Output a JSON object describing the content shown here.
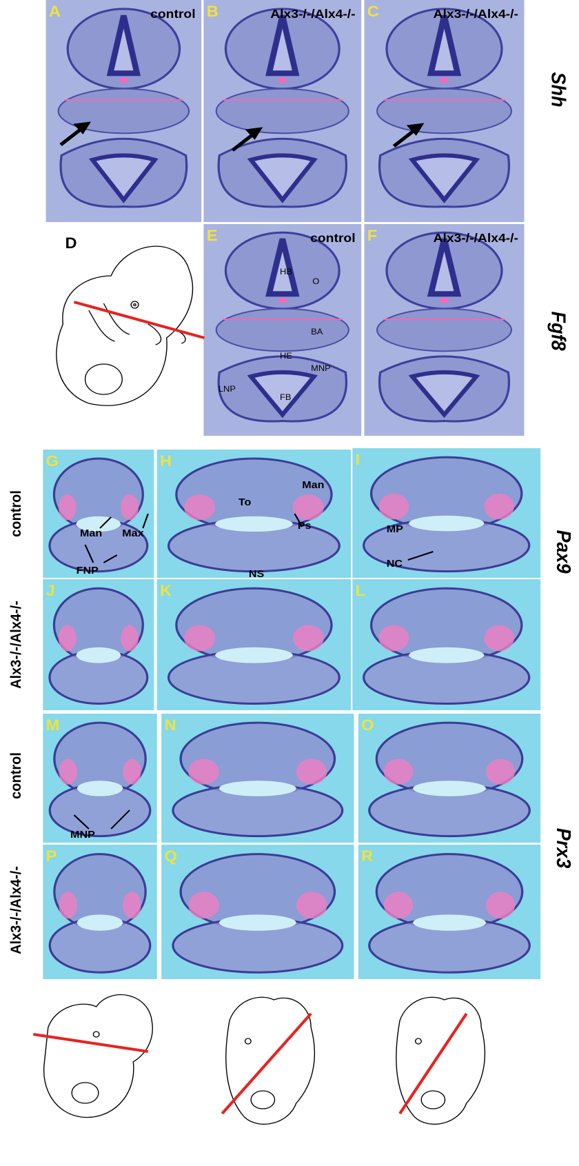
{
  "panels": [
    {
      "letter": "A",
      "caption": "control"
    },
    {
      "letter": "B",
      "caption": "Alx3-/-/Alx4-/-"
    },
    {
      "letter": "C",
      "caption": "Alx3-/-/Alx4-/-"
    },
    {
      "letter": "D"
    },
    {
      "letter": "E",
      "caption": "control"
    },
    {
      "letter": "F",
      "caption": "Alx3-/-/Alx4-/-"
    },
    {
      "letter": "G"
    },
    {
      "letter": "H"
    },
    {
      "letter": "I"
    },
    {
      "letter": "J"
    },
    {
      "letter": "K"
    },
    {
      "letter": "L"
    },
    {
      "letter": "M"
    },
    {
      "letter": "N"
    },
    {
      "letter": "O"
    },
    {
      "letter": "P"
    },
    {
      "letter": "Q"
    },
    {
      "letter": "R"
    }
  ],
  "annotations": [
    "HB",
    "O",
    "BA",
    "HE",
    "MNP",
    "LNP",
    "FB",
    "Man",
    "Max",
    "FNP",
    "To",
    "Man",
    "Ps",
    "NS",
    "MP",
    "NC",
    "MNP"
  ],
  "row_labels": [
    "control",
    "Alx3-/-/Alx4-/-",
    "control",
    "Alx3-/-/Alx4-/-"
  ],
  "gene_labels": [
    "Shh",
    "Fgf8",
    "Pax9",
    "Prx3"
  ]
}
